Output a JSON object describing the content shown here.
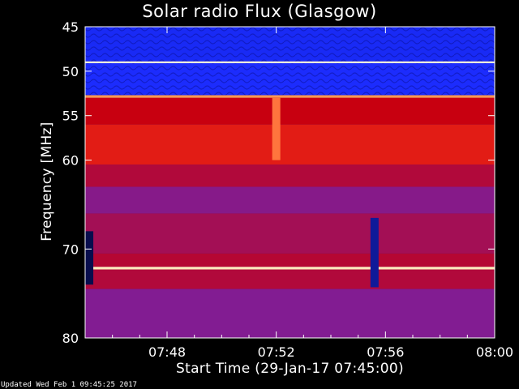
{
  "chart_data": {
    "type": "heatmap",
    "title": "Solar radio Flux (Glasgow)",
    "xlabel": "Start Time (29-Jan-17 07:45:00)",
    "ylabel": "Frequency [MHz]",
    "x_unit": "minutes after 07:45",
    "xlim": [
      0,
      15
    ],
    "ylim": [
      45,
      80
    ],
    "x_ticks": [
      {
        "value": 3,
        "label": "07:48"
      },
      {
        "value": 7,
        "label": "07:52"
      },
      {
        "value": 11,
        "label": "07:56"
      },
      {
        "value": 15,
        "label": "08:00"
      }
    ],
    "y_ticks": [
      {
        "value": 45,
        "label": "45"
      },
      {
        "value": 50,
        "label": "50"
      },
      {
        "value": 55,
        "label": "55"
      },
      {
        "value": 60,
        "label": "60"
      },
      {
        "value": 70,
        "label": "70"
      },
      {
        "value": 80,
        "label": "80"
      }
    ],
    "colormap": [
      "#000000",
      "#1a2cff",
      "#7a1fa0",
      "#c80010",
      "#ff3a1a",
      "#ffb060",
      "#ffffe0"
    ],
    "bands": [
      {
        "f0": 45.0,
        "f1": 48.9,
        "level": 0.16
      },
      {
        "f0": 48.9,
        "f1": 49.1,
        "level": 1.0
      },
      {
        "f0": 49.1,
        "f1": 52.7,
        "level": 0.17
      },
      {
        "f0": 52.7,
        "f1": 53.0,
        "level": 0.8
      },
      {
        "f0": 53.0,
        "f1": 56.0,
        "level": 0.5
      },
      {
        "f0": 56.0,
        "f1": 60.5,
        "level": 0.58
      },
      {
        "f0": 60.5,
        "f1": 63.0,
        "level": 0.45
      },
      {
        "f0": 63.0,
        "f1": 66.0,
        "level": 0.36
      },
      {
        "f0": 66.0,
        "f1": 70.5,
        "level": 0.42
      },
      {
        "f0": 70.5,
        "f1": 72.0,
        "level": 0.46
      },
      {
        "f0": 72.0,
        "f1": 72.3,
        "level": 0.95
      },
      {
        "f0": 72.3,
        "f1": 74.5,
        "level": 0.45
      },
      {
        "f0": 74.5,
        "f1": 80.0,
        "level": 0.35
      }
    ],
    "bursts": [
      {
        "t": 0.15,
        "f0": 68.0,
        "f1": 74.0,
        "level": 0.05,
        "note": "dropout"
      },
      {
        "t": 7.0,
        "f0": 53.0,
        "f1": 60.0,
        "level": 0.75,
        "note": "vertical stripe"
      },
      {
        "t": 10.6,
        "f0": 66.5,
        "f1": 74.3,
        "level": 0.1,
        "note": "dropout"
      }
    ],
    "grid": false,
    "legend": "none"
  },
  "footer": {
    "updated": "Updated Wed Feb  1 09:45:25 2017"
  }
}
